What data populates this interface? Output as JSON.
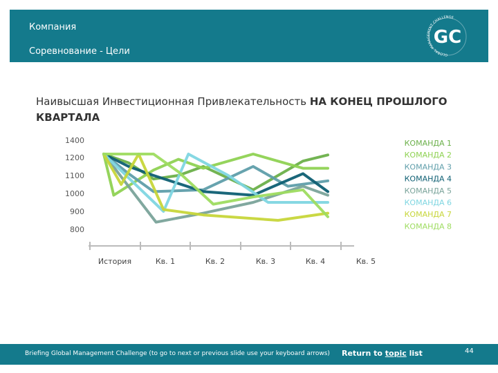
{
  "header": {
    "company": "Компания",
    "subtitle": "Соревнование - Цели",
    "logo_letters": "GC",
    "logo_ring_text": "GLOBAL MANAGEMENT CHALLENGE"
  },
  "slide_title": {
    "normal": "Наивысшая Инвестиционная Привлекательность ",
    "bold": "НА КОНЕЦ ПРОШЛОГО КВАРТАЛА"
  },
  "footer": {
    "note": "Briefing Global Management Challenge (to go to next or previous slide use your keyboard arrows)",
    "link_before": "Return to ",
    "link_underlined": "topic",
    "link_after": " list",
    "page_number": "44"
  },
  "colors": {
    "header_bg": "#147a8c",
    "footer_bg": "#147a8c",
    "axis": "#bbbbbb"
  },
  "chart_data": {
    "type": "line",
    "categories": [
      "История",
      "Кв. 1",
      "Кв. 2",
      "Кв.  3",
      "Кв. 4",
      "Кв. 5"
    ],
    "y_ticks": [
      800,
      900,
      1000,
      1100,
      1200,
      1400
    ],
    "ylim": [
      800,
      1400
    ],
    "legend_position": "right",
    "series": [
      {
        "name": "КОМАНДА 1",
        "color": "#6bb04a",
        "points": [
          [
            0,
            1240
          ],
          [
            0.5,
            1170
          ],
          [
            1,
            1080
          ],
          [
            1.5,
            1100
          ],
          [
            2,
            1150
          ],
          [
            3,
            1020
          ],
          [
            4,
            1180
          ],
          [
            4.5,
            1230
          ]
        ]
      },
      {
        "name": "КОМАНДА 2",
        "color": "#8fd253",
        "points": [
          [
            0,
            1240
          ],
          [
            0.2,
            990
          ],
          [
            1,
            1130
          ],
          [
            1.5,
            1190
          ],
          [
            2,
            1140
          ],
          [
            3,
            1240
          ],
          [
            4,
            1140
          ],
          [
            4.5,
            1140
          ]
        ]
      },
      {
        "name": "КОМАНДА 3",
        "color": "#5f9eaa",
        "points": [
          [
            0,
            1240
          ],
          [
            0.5,
            1110
          ],
          [
            1,
            1010
          ],
          [
            2,
            1020
          ],
          [
            3,
            1150
          ],
          [
            3.7,
            1040
          ],
          [
            4.5,
            1070
          ]
        ]
      },
      {
        "name": "КОМАНДА 4",
        "color": "#0e5f73",
        "points": [
          [
            0,
            1240
          ],
          [
            0.5,
            1150
          ],
          [
            1,
            1100
          ],
          [
            2,
            1010
          ],
          [
            3,
            990
          ],
          [
            4,
            1110
          ],
          [
            4.5,
            1010
          ]
        ]
      },
      {
        "name": "КОМАНДА 5",
        "color": "#7aa39a",
        "points": [
          [
            0,
            1240
          ],
          [
            1.05,
            840
          ],
          [
            2,
            890
          ],
          [
            3,
            950
          ],
          [
            4,
            1040
          ],
          [
            4.5,
            990
          ]
        ]
      },
      {
        "name": "КОМАНДА 6",
        "color": "#7fd6e1",
        "points": [
          [
            0,
            1240
          ],
          [
            1.2,
            900
          ],
          [
            1.7,
            1240
          ],
          [
            2.5,
            1100
          ],
          [
            3.3,
            950
          ],
          [
            4.5,
            950
          ]
        ]
      },
      {
        "name": "КОМАНДА 7",
        "color": "#c7d63a",
        "points": [
          [
            0,
            1240
          ],
          [
            0.35,
            1050
          ],
          [
            0.7,
            1240
          ],
          [
            1.2,
            910
          ],
          [
            2,
            880
          ],
          [
            3.5,
            850
          ],
          [
            4.5,
            890
          ]
        ]
      },
      {
        "name": "КОМАНДА 8",
        "color": "#9edc60",
        "points": [
          [
            0,
            1240
          ],
          [
            1,
            1240
          ],
          [
            1.5,
            1120
          ],
          [
            2.2,
            940
          ],
          [
            3,
            980
          ],
          [
            4,
            1020
          ],
          [
            4.5,
            870
          ]
        ]
      }
    ]
  }
}
